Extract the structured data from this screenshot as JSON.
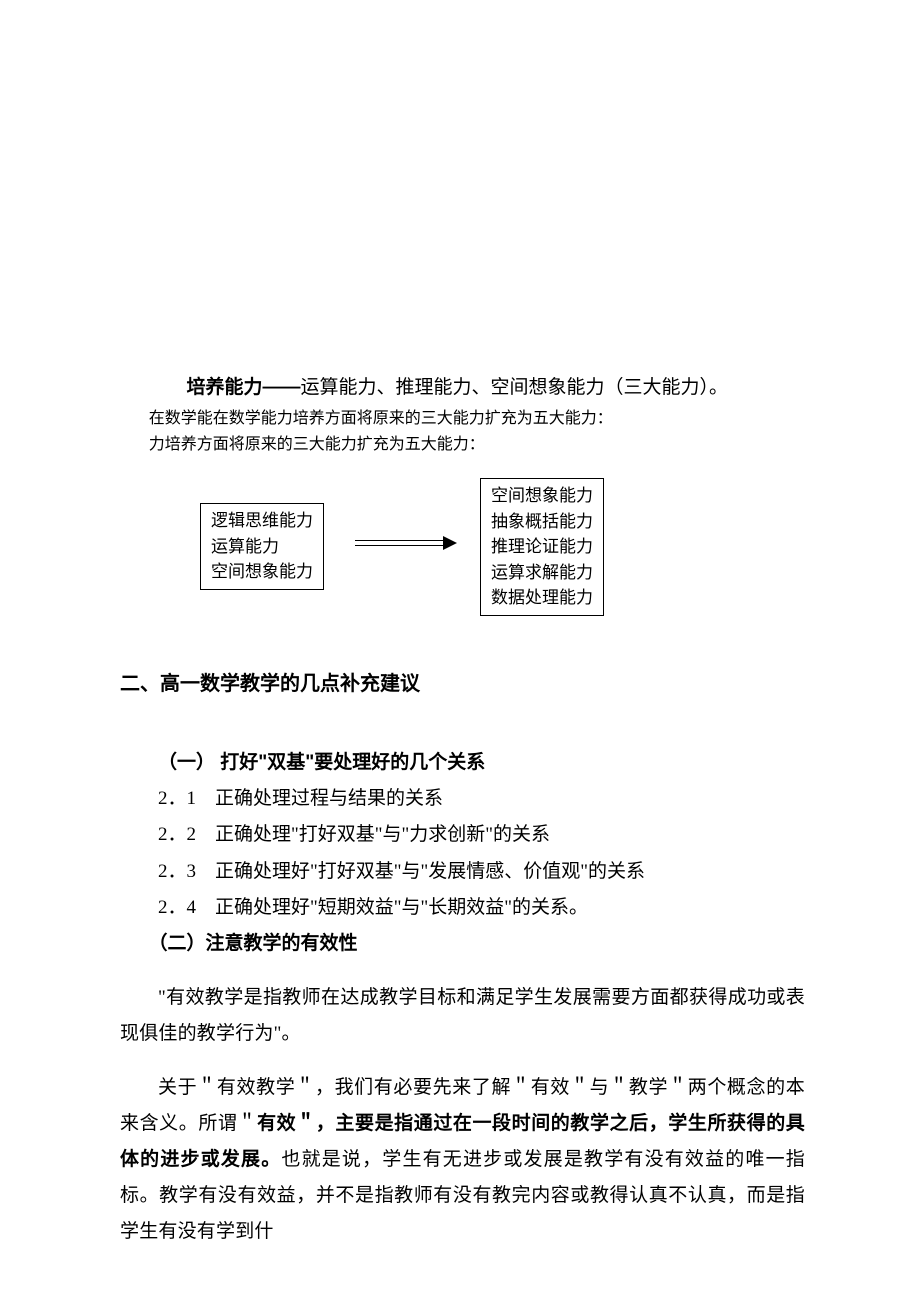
{
  "intro": {
    "lead_bold": "培养能力——",
    "lead_rest": "运算能力、推理能力、空间想象能力（三大能力）。",
    "sub1": "在数学能在数学能力培养方面将原来的三大能力扩充为五大能力：",
    "sub2": "力培养方面将原来的三大能力扩充为五大能力："
  },
  "diagram": {
    "left_box": [
      "逻辑思维能力",
      "运算能力",
      "空间想象能力"
    ],
    "right_box": [
      "空间想象能力",
      "抽象概括能力",
      "推理论证能力",
      "运算求解能力",
      "数据处理能力"
    ]
  },
  "h2": "二、高一数学教学的几点补充建议",
  "sectionA": {
    "title": "（一） 打好\"双基\"要处理好的几个关系",
    "items": [
      "2．1　正确处理过程与结果的关系",
      "2．2　正确处理\"打好双基\"与\"力求创新\"的关系",
      "2．3　正确处理好\"打好双基\"与\"发展情感、价值观\"的关系",
      "2．4　正确处理好\"短期效益\"与\"长期效益\"的关系。"
    ]
  },
  "sectionB": {
    "title": "（二）注意教学的有效性",
    "p1": "\"有效教学是指教师在达成教学目标和满足学生发展需要方面都获得成功或表现俱佳的教学行为\"。",
    "p2_a": "关于＂有效教学＂，我们有必要先来了解＂有效＂与＂教学＂两个概念的本来含义。所谓＂",
    "p2_bold": "有效＂，主要是指通过在一段时间的教学之后，学生所获得的具体的进步或发展。",
    "p2_b": "也就是说，学生有无进步或发展是教学有没有效益的唯一指标。教学有没有效益，并不是指教师有没有教完内容或教得认真不认真，而是指学生有没有学到什"
  },
  "style": {
    "body_font_size": 19,
    "sub_font_size": 16,
    "box_font_size": 17,
    "text_color": "#000000",
    "bg_color": "#ffffff",
    "border_color": "#000000"
  }
}
